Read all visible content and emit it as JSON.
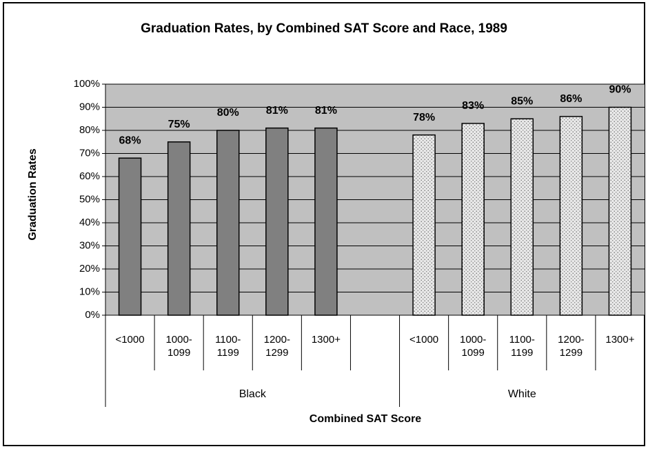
{
  "chart_data": {
    "type": "bar",
    "title": "Graduation Rates, by Combined SAT Score and Race, 1989",
    "x_label": "Combined SAT Score",
    "y_label": "Graduation Rates",
    "categories": [
      "<1000",
      "1000-1099",
      "1100-1199",
      "1200-1299",
      "1300+",
      null,
      "<1000",
      "1000-1099",
      "1100-1199",
      "1200-1299",
      "1300+"
    ],
    "series": [
      {
        "name": "Black",
        "color": "#808080",
        "pattern": "solid",
        "values": [
          68,
          75,
          80,
          81,
          81,
          null,
          null,
          null,
          null,
          null,
          null
        ],
        "value_labels": [
          "68%",
          "75%",
          "80%",
          "81%",
          "81%",
          null,
          null,
          null,
          null,
          null,
          null
        ]
      },
      {
        "name": "White",
        "color": "#e8e8e8",
        "pattern": "dotted",
        "values": [
          null,
          null,
          null,
          null,
          null,
          null,
          78,
          83,
          85,
          86,
          90
        ],
        "value_labels": [
          null,
          null,
          null,
          null,
          null,
          null,
          "78%",
          "83%",
          "85%",
          "86%",
          "90%"
        ]
      }
    ],
    "ylim": [
      0,
      100
    ],
    "yticks": [
      {
        "value": 0,
        "label": "0%"
      },
      {
        "value": 10,
        "label": "10%"
      },
      {
        "value": 20,
        "label": "20%"
      },
      {
        "value": 30,
        "label": "30%"
      },
      {
        "value": 40,
        "label": "40%"
      },
      {
        "value": 50,
        "label": "50%"
      },
      {
        "value": 60,
        "label": "60%"
      },
      {
        "value": 70,
        "label": "70%"
      },
      {
        "value": 80,
        "label": "80%"
      },
      {
        "value": 90,
        "label": "90%"
      },
      {
        "value": 100,
        "label": "100%"
      }
    ],
    "grid": true
  }
}
